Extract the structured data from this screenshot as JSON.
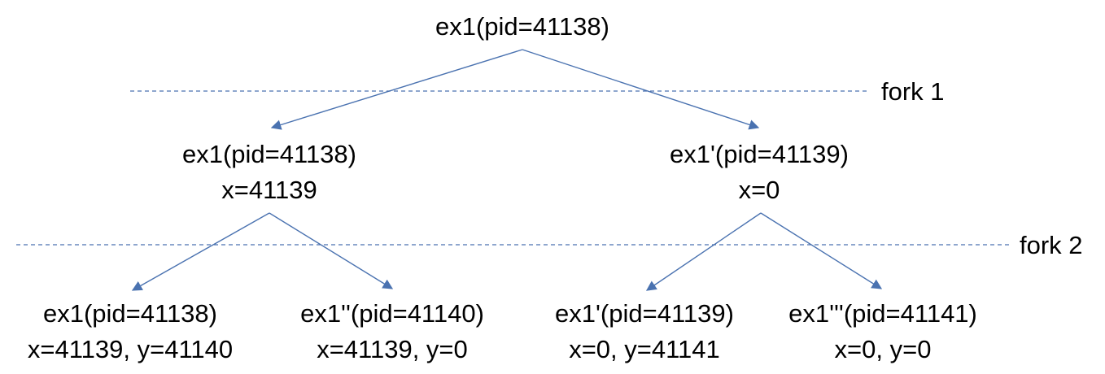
{
  "nodes": [
    {
      "id": "root",
      "lines": [
        "ex1(pid=41138)"
      ]
    },
    {
      "id": "l1-left",
      "lines": [
        "ex1(pid=41138)",
        "x=41139"
      ]
    },
    {
      "id": "l1-right",
      "lines": [
        "ex1'(pid=41139)",
        "x=0"
      ]
    },
    {
      "id": "l2-a",
      "lines": [
        "ex1(pid=41138)",
        "x=41139, y=41140"
      ]
    },
    {
      "id": "l2-b",
      "lines": [
        "ex1''(pid=41140)",
        "x=41139, y=0"
      ]
    },
    {
      "id": "l2-c",
      "lines": [
        "ex1'(pid=41139)",
        "x=0, y=41141"
      ]
    },
    {
      "id": "l2-d",
      "lines": [
        "ex1'''(pid=41141)",
        "x=0, y=0"
      ]
    }
  ],
  "edges": [
    {
      "from": "root",
      "to": "l1-left"
    },
    {
      "from": "root",
      "to": "l1-right"
    },
    {
      "from": "l1-left",
      "to": "l2-a"
    },
    {
      "from": "l1-left",
      "to": "l2-b"
    },
    {
      "from": "l1-right",
      "to": "l2-c"
    },
    {
      "from": "l1-right",
      "to": "l2-d"
    }
  ],
  "forks": [
    {
      "label": "fork 1"
    },
    {
      "label": "fork 2"
    }
  ],
  "colors": {
    "line": "#4a72b0",
    "text": "#000000",
    "background": "#ffffff"
  }
}
